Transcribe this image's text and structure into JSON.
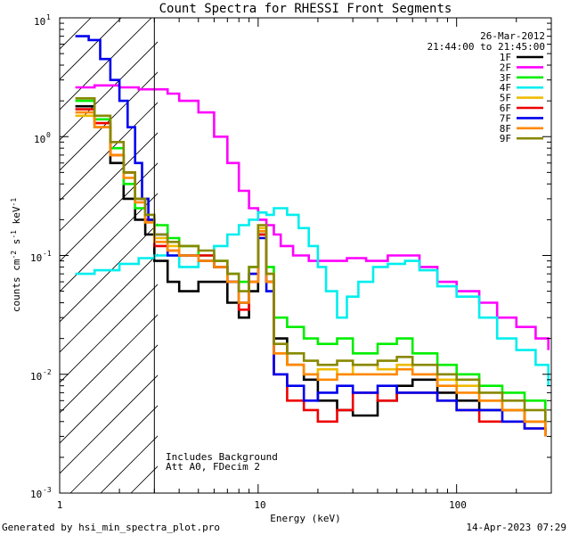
{
  "chart_data": {
    "type": "line",
    "title": "Count Spectra for RHESSI Front Segments",
    "xlabel": "Energy (keV)",
    "ylabel": "counts cm-2 s-1 keV-1",
    "xscale": "log",
    "yscale": "log",
    "xlim": [
      1,
      300
    ],
    "ylim": [
      0.001,
      10
    ],
    "x_tick_labels": [
      "1",
      "10",
      "100"
    ],
    "y_tick_labels": [
      {
        "base": "10",
        "exp": "1"
      },
      {
        "base": "10",
        "exp": "0"
      },
      {
        "base": "10",
        "exp": "-1"
      },
      {
        "base": "10",
        "exp": "-2"
      },
      {
        "base": "10",
        "exp": "-3"
      }
    ],
    "date": "26-Mar-2012",
    "time_range": "21:44:00 to 21:45:00",
    "vline_energy": 3,
    "notes": [
      "Includes Background",
      "Att A0, FDecim 2"
    ],
    "footer_left": "Generated by hsi_min_spectra_plot.pro",
    "footer_right": "14-Apr-2023 07:29",
    "series": [
      {
        "name": "1F",
        "color": "#000000",
        "points": [
          [
            1.2,
            1.8
          ],
          [
            1.5,
            1.2
          ],
          [
            1.8,
            0.6
          ],
          [
            2.1,
            0.3
          ],
          [
            2.4,
            0.2
          ],
          [
            2.7,
            0.15
          ],
          [
            3.0,
            0.09
          ],
          [
            3.5,
            0.06
          ],
          [
            4,
            0.05
          ],
          [
            5,
            0.06
          ],
          [
            6,
            0.06
          ],
          [
            7,
            0.04
          ],
          [
            8,
            0.03
          ],
          [
            9,
            0.05
          ],
          [
            10,
            0.15
          ],
          [
            11,
            0.06
          ],
          [
            12,
            0.02
          ],
          [
            14,
            0.012
          ],
          [
            17,
            0.009
          ],
          [
            20,
            0.006
          ],
          [
            25,
            0.005
          ],
          [
            30,
            0.0045
          ],
          [
            40,
            0.006
          ],
          [
            50,
            0.008
          ],
          [
            60,
            0.009
          ],
          [
            80,
            0.007
          ],
          [
            100,
            0.006
          ],
          [
            130,
            0.005
          ],
          [
            170,
            0.005
          ],
          [
            220,
            0.004
          ],
          [
            280,
            0.003
          ]
        ]
      },
      {
        "name": "2F",
        "color": "#ff00ff",
        "points": [
          [
            1.2,
            2.6
          ],
          [
            1.5,
            2.7
          ],
          [
            2,
            2.6
          ],
          [
            2.5,
            2.5
          ],
          [
            3,
            2.5
          ],
          [
            3.5,
            2.3
          ],
          [
            4,
            2.0
          ],
          [
            5,
            1.6
          ],
          [
            6,
            1.0
          ],
          [
            7,
            0.6
          ],
          [
            8,
            0.35
          ],
          [
            9,
            0.25
          ],
          [
            10,
            0.2
          ],
          [
            11,
            0.18
          ],
          [
            12,
            0.15
          ],
          [
            13,
            0.12
          ],
          [
            15,
            0.1
          ],
          [
            18,
            0.09
          ],
          [
            22,
            0.09
          ],
          [
            28,
            0.095
          ],
          [
            35,
            0.09
          ],
          [
            45,
            0.1
          ],
          [
            55,
            0.1
          ],
          [
            65,
            0.08
          ],
          [
            80,
            0.06
          ],
          [
            100,
            0.05
          ],
          [
            130,
            0.04
          ],
          [
            160,
            0.03
          ],
          [
            200,
            0.025
          ],
          [
            250,
            0.02
          ],
          [
            290,
            0.016
          ]
        ]
      },
      {
        "name": "3F",
        "color": "#00ee00",
        "points": [
          [
            1.2,
            2.0
          ],
          [
            1.5,
            1.4
          ],
          [
            1.8,
            0.8
          ],
          [
            2.1,
            0.4
          ],
          [
            2.4,
            0.25
          ],
          [
            2.7,
            0.2
          ],
          [
            3.0,
            0.18
          ],
          [
            3.5,
            0.14
          ],
          [
            4,
            0.12
          ],
          [
            5,
            0.1
          ],
          [
            6,
            0.09
          ],
          [
            7,
            0.07
          ],
          [
            8,
            0.06
          ],
          [
            9,
            0.08
          ],
          [
            10,
            0.16
          ],
          [
            11,
            0.08
          ],
          [
            12,
            0.03
          ],
          [
            14,
            0.025
          ],
          [
            17,
            0.02
          ],
          [
            20,
            0.018
          ],
          [
            25,
            0.02
          ],
          [
            30,
            0.015
          ],
          [
            40,
            0.018
          ],
          [
            50,
            0.02
          ],
          [
            60,
            0.015
          ],
          [
            80,
            0.012
          ],
          [
            100,
            0.01
          ],
          [
            130,
            0.008
          ],
          [
            170,
            0.007
          ],
          [
            220,
            0.006
          ],
          [
            280,
            0.004
          ]
        ]
      },
      {
        "name": "4F",
        "color": "#00eeee",
        "points": [
          [
            1.2,
            0.07
          ],
          [
            1.5,
            0.075
          ],
          [
            2,
            0.085
          ],
          [
            2.5,
            0.095
          ],
          [
            3,
            0.1
          ],
          [
            3.5,
            0.1
          ],
          [
            4,
            0.08
          ],
          [
            5,
            0.09
          ],
          [
            6,
            0.12
          ],
          [
            7,
            0.15
          ],
          [
            8,
            0.18
          ],
          [
            9,
            0.2
          ],
          [
            10,
            0.23
          ],
          [
            11,
            0.22
          ],
          [
            12,
            0.25
          ],
          [
            14,
            0.22
          ],
          [
            16,
            0.17
          ],
          [
            18,
            0.12
          ],
          [
            20,
            0.08
          ],
          [
            22,
            0.05
          ],
          [
            25,
            0.03
          ],
          [
            28,
            0.045
          ],
          [
            32,
            0.06
          ],
          [
            38,
            0.08
          ],
          [
            45,
            0.085
          ],
          [
            55,
            0.09
          ],
          [
            65,
            0.075
          ],
          [
            80,
            0.055
          ],
          [
            100,
            0.045
          ],
          [
            130,
            0.03
          ],
          [
            160,
            0.02
          ],
          [
            200,
            0.016
          ],
          [
            250,
            0.012
          ],
          [
            290,
            0.008
          ]
        ]
      },
      {
        "name": "5F",
        "color": "#eebb00",
        "points": [
          [
            1.2,
            1.5
          ],
          [
            1.5,
            1.2
          ],
          [
            1.8,
            0.7
          ],
          [
            2.1,
            0.5
          ],
          [
            2.4,
            0.3
          ],
          [
            2.7,
            0.2
          ],
          [
            3.0,
            0.14
          ],
          [
            3.5,
            0.12
          ],
          [
            4,
            0.1
          ],
          [
            5,
            0.09
          ],
          [
            6,
            0.08
          ],
          [
            7,
            0.06
          ],
          [
            8,
            0.04
          ],
          [
            9,
            0.07
          ],
          [
            10,
            0.17
          ],
          [
            11,
            0.07
          ],
          [
            12,
            0.015
          ],
          [
            14,
            0.012
          ],
          [
            17,
            0.01
          ],
          [
            20,
            0.011
          ],
          [
            25,
            0.01
          ],
          [
            30,
            0.012
          ],
          [
            40,
            0.011
          ],
          [
            50,
            0.012
          ],
          [
            60,
            0.01
          ],
          [
            80,
            0.009
          ],
          [
            100,
            0.008
          ],
          [
            130,
            0.006
          ],
          [
            170,
            0.005
          ],
          [
            220,
            0.004
          ],
          [
            280,
            0.003
          ]
        ]
      },
      {
        "name": "6F",
        "color": "#ee0000",
        "points": [
          [
            1.2,
            1.7
          ],
          [
            1.5,
            1.3
          ],
          [
            1.8,
            0.7
          ],
          [
            2.1,
            0.5
          ],
          [
            2.4,
            0.3
          ],
          [
            2.7,
            0.2
          ],
          [
            3.0,
            0.12
          ],
          [
            3.5,
            0.11
          ],
          [
            4,
            0.1
          ],
          [
            5,
            0.1
          ],
          [
            6,
            0.08
          ],
          [
            7,
            0.06
          ],
          [
            8,
            0.035
          ],
          [
            9,
            0.06
          ],
          [
            10,
            0.15
          ],
          [
            11,
            0.06
          ],
          [
            12,
            0.01
          ],
          [
            14,
            0.006
          ],
          [
            17,
            0.005
          ],
          [
            20,
            0.004
          ],
          [
            25,
            0.005
          ],
          [
            30,
            0.007
          ],
          [
            40,
            0.006
          ],
          [
            50,
            0.007
          ],
          [
            60,
            0.007
          ],
          [
            80,
            0.006
          ],
          [
            100,
            0.005
          ],
          [
            130,
            0.004
          ],
          [
            170,
            0.004
          ],
          [
            220,
            0.0035
          ],
          [
            280,
            0.003
          ]
        ]
      },
      {
        "name": "7F",
        "color": "#0000ee",
        "points": [
          [
            1.2,
            7.0
          ],
          [
            1.4,
            6.5
          ],
          [
            1.6,
            4.5
          ],
          [
            1.8,
            3.0
          ],
          [
            2.0,
            2.0
          ],
          [
            2.2,
            1.2
          ],
          [
            2.4,
            0.6
          ],
          [
            2.6,
            0.3
          ],
          [
            2.8,
            0.2
          ],
          [
            3.0,
            0.15
          ],
          [
            3.5,
            0.1
          ],
          [
            4,
            0.1
          ],
          [
            5,
            0.09
          ],
          [
            6,
            0.08
          ],
          [
            7,
            0.06
          ],
          [
            8,
            0.04
          ],
          [
            9,
            0.07
          ],
          [
            10,
            0.14
          ],
          [
            11,
            0.05
          ],
          [
            12,
            0.01
          ],
          [
            14,
            0.008
          ],
          [
            17,
            0.006
          ],
          [
            20,
            0.007
          ],
          [
            25,
            0.008
          ],
          [
            30,
            0.007
          ],
          [
            40,
            0.008
          ],
          [
            50,
            0.007
          ],
          [
            60,
            0.007
          ],
          [
            80,
            0.006
          ],
          [
            100,
            0.005
          ],
          [
            130,
            0.005
          ],
          [
            170,
            0.004
          ],
          [
            220,
            0.0035
          ],
          [
            280,
            0.003
          ]
        ]
      },
      {
        "name": "8F",
        "color": "#ff8800",
        "points": [
          [
            1.2,
            1.6
          ],
          [
            1.5,
            1.2
          ],
          [
            1.8,
            0.7
          ],
          [
            2.1,
            0.45
          ],
          [
            2.4,
            0.28
          ],
          [
            2.7,
            0.19
          ],
          [
            3.0,
            0.13
          ],
          [
            3.5,
            0.11
          ],
          [
            4,
            0.1
          ],
          [
            5,
            0.09
          ],
          [
            6,
            0.08
          ],
          [
            7,
            0.06
          ],
          [
            8,
            0.04
          ],
          [
            9,
            0.06
          ],
          [
            10,
            0.16
          ],
          [
            11,
            0.06
          ],
          [
            12,
            0.015
          ],
          [
            14,
            0.012
          ],
          [
            17,
            0.01
          ],
          [
            20,
            0.009
          ],
          [
            25,
            0.01
          ],
          [
            30,
            0.01
          ],
          [
            40,
            0.01
          ],
          [
            50,
            0.011
          ],
          [
            60,
            0.01
          ],
          [
            80,
            0.008
          ],
          [
            100,
            0.007
          ],
          [
            130,
            0.006
          ],
          [
            170,
            0.005
          ],
          [
            220,
            0.004
          ],
          [
            280,
            0.003
          ]
        ]
      },
      {
        "name": "9F",
        "color": "#888800",
        "points": [
          [
            1.2,
            2.1
          ],
          [
            1.5,
            1.5
          ],
          [
            1.8,
            0.9
          ],
          [
            2.1,
            0.5
          ],
          [
            2.4,
            0.3
          ],
          [
            2.7,
            0.22
          ],
          [
            3.0,
            0.15
          ],
          [
            3.5,
            0.13
          ],
          [
            4,
            0.12
          ],
          [
            5,
            0.11
          ],
          [
            6,
            0.09
          ],
          [
            7,
            0.07
          ],
          [
            8,
            0.05
          ],
          [
            9,
            0.08
          ],
          [
            10,
            0.18
          ],
          [
            11,
            0.07
          ],
          [
            12,
            0.018
          ],
          [
            14,
            0.015
          ],
          [
            17,
            0.013
          ],
          [
            20,
            0.012
          ],
          [
            25,
            0.013
          ],
          [
            30,
            0.012
          ],
          [
            40,
            0.013
          ],
          [
            50,
            0.014
          ],
          [
            60,
            0.012
          ],
          [
            80,
            0.01
          ],
          [
            100,
            0.009
          ],
          [
            130,
            0.007
          ],
          [
            170,
            0.006
          ],
          [
            220,
            0.005
          ],
          [
            280,
            0.004
          ]
        ]
      }
    ]
  }
}
